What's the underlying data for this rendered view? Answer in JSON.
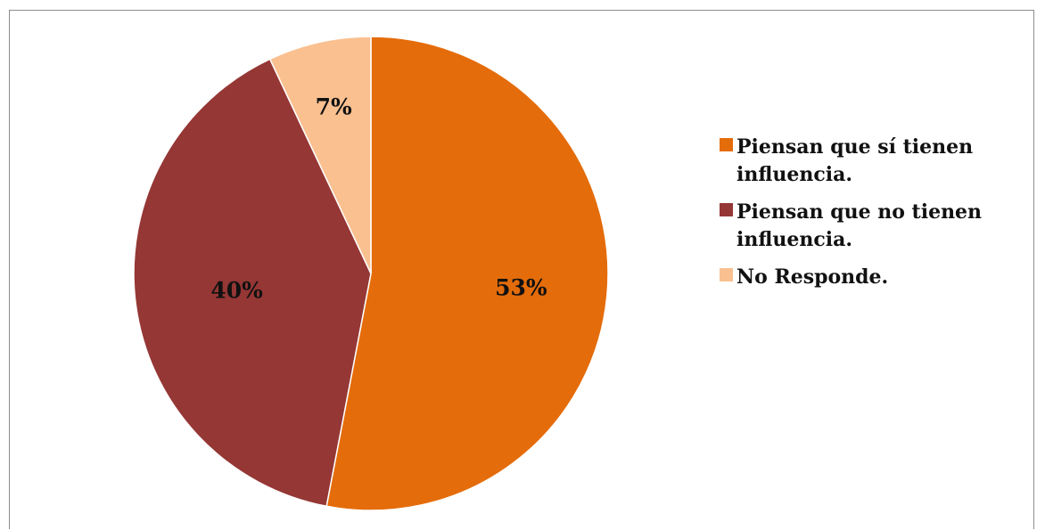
{
  "chart_data": {
    "type": "pie",
    "title": "",
    "slices": [
      {
        "label": "Piensan que sí tienen influencia.",
        "value": 53,
        "display": "53%",
        "color": "#E46C0A"
      },
      {
        "label": "Piensan que no tienen influencia.",
        "value": 40,
        "display": "40%",
        "color": "#953735"
      },
      {
        "label": "No Responde.",
        "value": 7,
        "display": "7%",
        "color": "#FAC090"
      }
    ],
    "start": "12 o'clock",
    "direction": "clockwise",
    "legend_position": "right"
  }
}
